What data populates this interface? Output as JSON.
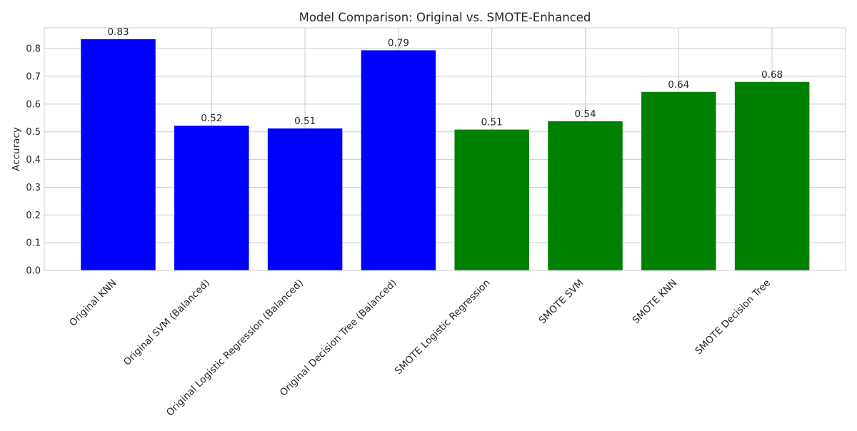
{
  "chart_data": {
    "type": "bar",
    "title": "Model Comparison: Original vs. SMOTE-Enhanced",
    "xlabel": "",
    "ylabel": "Accuracy",
    "ylim": [
      0,
      0.875
    ],
    "yticks": [
      0.0,
      0.1,
      0.2,
      0.3,
      0.4,
      0.5,
      0.6,
      0.7,
      0.8
    ],
    "ytick_labels": [
      "0.0",
      "0.1",
      "0.2",
      "0.3",
      "0.4",
      "0.5",
      "0.6",
      "0.7",
      "0.8"
    ],
    "grid": true,
    "categories": [
      "Original KNN",
      "Original SVM (Balanced)",
      "Original Logistic Regression (Balanced)",
      "Original Decision Tree (Balanced)",
      "SMOTE Logistic Regression",
      "SMOTE SVM",
      "SMOTE KNN",
      "SMOTE Decision Tree"
    ],
    "values": [
      0.834,
      0.522,
      0.512,
      0.794,
      0.508,
      0.538,
      0.644,
      0.68
    ],
    "value_labels": [
      "0.83",
      "0.52",
      "0.51",
      "0.79",
      "0.51",
      "0.54",
      "0.64",
      "0.68"
    ],
    "bar_colors": [
      "#0000ff",
      "#0000ff",
      "#0000ff",
      "#0000ff",
      "#008000",
      "#008000",
      "#008000",
      "#008000"
    ]
  }
}
